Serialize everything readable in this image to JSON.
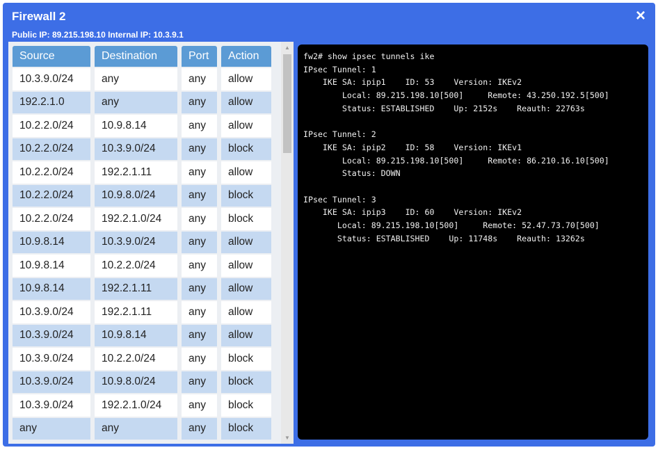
{
  "window": {
    "title": "Firewall 2",
    "subtitle": "Public IP: 89.215.198.10 Internal IP: 10.3.9.1",
    "close_icon": "×"
  },
  "colors": {
    "frame": "#3d6ee6",
    "header": "#5b9bd5",
    "row_alt": "#c5d9f1",
    "terminal_bg": "#000000"
  },
  "table": {
    "headers": [
      "Source",
      "Destination",
      "Port",
      "Action"
    ],
    "rows": [
      [
        "10.3.9.0/24",
        "any",
        "any",
        "allow"
      ],
      [
        "192.2.1.0",
        "any",
        "any",
        "allow"
      ],
      [
        "10.2.2.0/24",
        "10.9.8.14",
        "any",
        "allow"
      ],
      [
        "10.2.2.0/24",
        "10.3.9.0/24",
        "any",
        "block"
      ],
      [
        "10.2.2.0/24",
        "192.2.1.11",
        "any",
        "allow"
      ],
      [
        "10.2.2.0/24",
        "10.9.8.0/24",
        "any",
        "block"
      ],
      [
        "10.2.2.0/24",
        "192.2.1.0/24",
        "any",
        "block"
      ],
      [
        "10.9.8.14",
        "10.3.9.0/24",
        "any",
        "allow"
      ],
      [
        "10.9.8.14",
        "10.2.2.0/24",
        "any",
        "allow"
      ],
      [
        "10.9.8.14",
        "192.2.1.11",
        "any",
        "allow"
      ],
      [
        "10.3.9.0/24",
        "192.2.1.11",
        "any",
        "allow"
      ],
      [
        "10.3.9.0/24",
        "10.9.8.14",
        "any",
        "allow"
      ],
      [
        "10.3.9.0/24",
        "10.2.2.0/24",
        "any",
        "block"
      ],
      [
        "10.3.9.0/24",
        "10.9.8.0/24",
        "any",
        "block"
      ],
      [
        "10.3.9.0/24",
        "192.2.1.0/24",
        "any",
        "block"
      ],
      [
        "any",
        "any",
        "any",
        "block"
      ]
    ]
  },
  "terminal": {
    "lines": [
      "fw2# show ipsec tunnels ike",
      "IPsec Tunnel: 1",
      "    IKE SA: ipip1    ID: 53    Version: IKEv2",
      "        Local: 89.215.198.10[500]     Remote: 43.250.192.5[500]",
      "        Status: ESTABLISHED    Up: 2152s    Reauth: 22763s",
      "",
      "IPsec Tunnel: 2",
      "    IKE SA: ipip2    ID: 58    Version: IKEv1",
      "        Local: 89.215.198.10[500]     Remote: 86.210.16.10[500]",
      "        Status: DOWN",
      "",
      "IPsec Tunnel: 3",
      "    IKE SA: ipip3    ID: 60    Version: IKEv2",
      "       Local: 89.215.198.10[500]     Remote: 52.47.73.70[500]",
      "       Status: ESTABLISHED    Up: 11748s    Reauth: 13262s"
    ]
  }
}
